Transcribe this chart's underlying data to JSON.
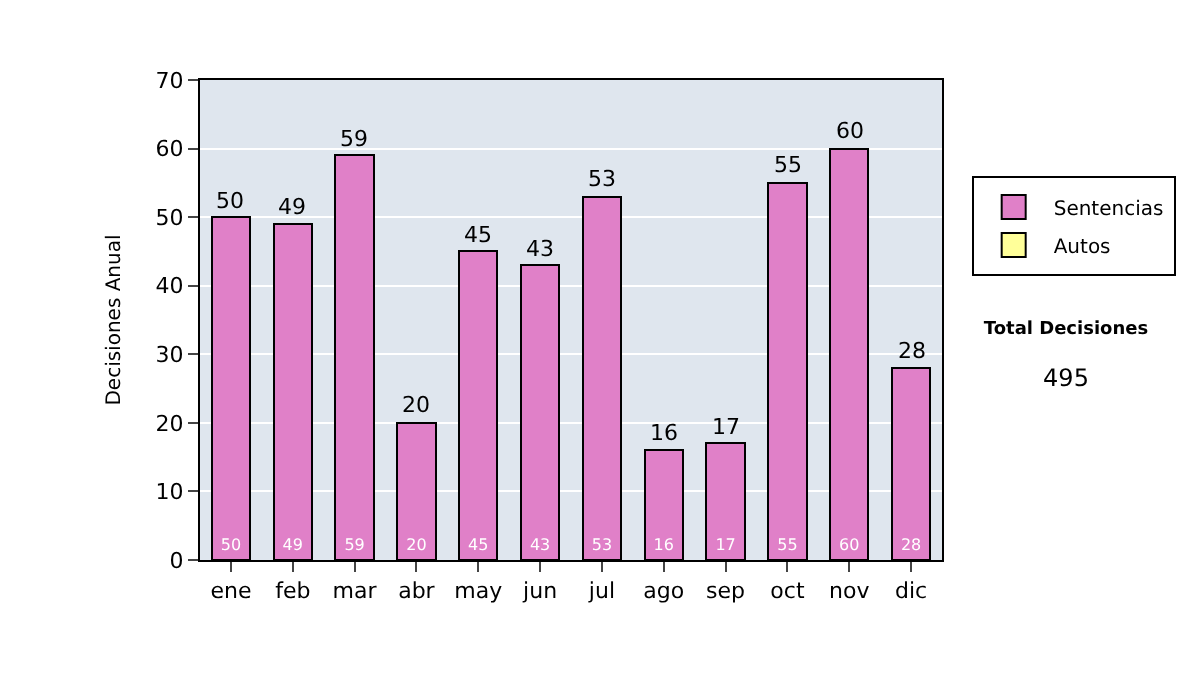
{
  "chart_data": {
    "type": "bar",
    "stacked": true,
    "ylabel": "Decisiones Anual",
    "categories": [
      "ene",
      "feb",
      "mar",
      "abr",
      "may",
      "jun",
      "jul",
      "ago",
      "sep",
      "oct",
      "nov",
      "dic"
    ],
    "series": [
      {
        "name": "Sentencias",
        "color": "#e080c8",
        "values": [
          50,
          49,
          59,
          20,
          45,
          43,
          53,
          16,
          17,
          55,
          60,
          28
        ],
        "value_labels": [
          "50",
          "49",
          "59",
          "20",
          "45",
          "43",
          "53",
          "16",
          "17",
          "55",
          "60",
          "28"
        ]
      },
      {
        "name": "Autos",
        "color": "#ffff99",
        "values": [
          null,
          null,
          null,
          null,
          null,
          null,
          null,
          null,
          null,
          null,
          null,
          null
        ]
      }
    ],
    "totals": [
      "50",
      "49",
      "59",
      "20",
      "45",
      "43",
      "53",
      "16",
      "17",
      "55",
      "60",
      "28"
    ],
    "ylim": [
      0,
      70
    ],
    "yticks": [
      0,
      10,
      20,
      30,
      40,
      50,
      60,
      70
    ],
    "grid": "y",
    "legend": "right",
    "annotations": [
      "Total Decisiones",
      "495"
    ]
  }
}
